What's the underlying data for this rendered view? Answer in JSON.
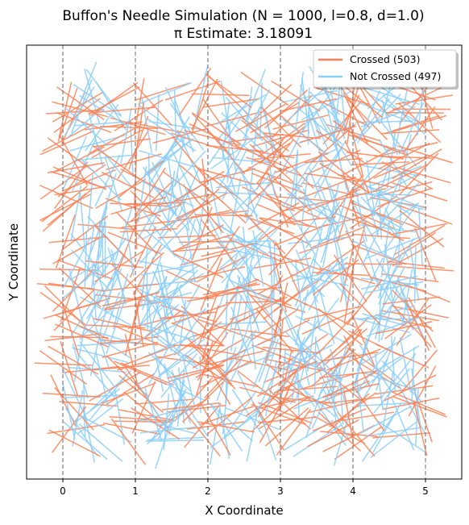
{
  "chart_data": {
    "type": "line",
    "title_line1": "Buffon's Needle Simulation (N = 1000, l=0.8, d=1.0)",
    "title_line2": "π Estimate: 3.18091",
    "xlabel": "X Coordinate",
    "ylabel": "Y Coordinate",
    "xlim": [
      -0.5,
      5.5
    ],
    "ylim": [
      -0.5,
      5.6
    ],
    "x_ticks": [
      0,
      1,
      2,
      3,
      4,
      5
    ],
    "y_ticks_shown": false,
    "grid": false,
    "vertical_lines": [
      0,
      1,
      2,
      3,
      4,
      5
    ],
    "needle_count": 1000,
    "needle_length": 0.8,
    "line_spacing": 1.0,
    "pi_estimate": 3.18091,
    "legend_position": "top-right",
    "series": [
      {
        "name": "Crossed (503)",
        "count": 503,
        "color": "#ff7f50"
      },
      {
        "name": "Not Crossed (497)",
        "count": 497,
        "color": "#87cefa"
      }
    ]
  }
}
